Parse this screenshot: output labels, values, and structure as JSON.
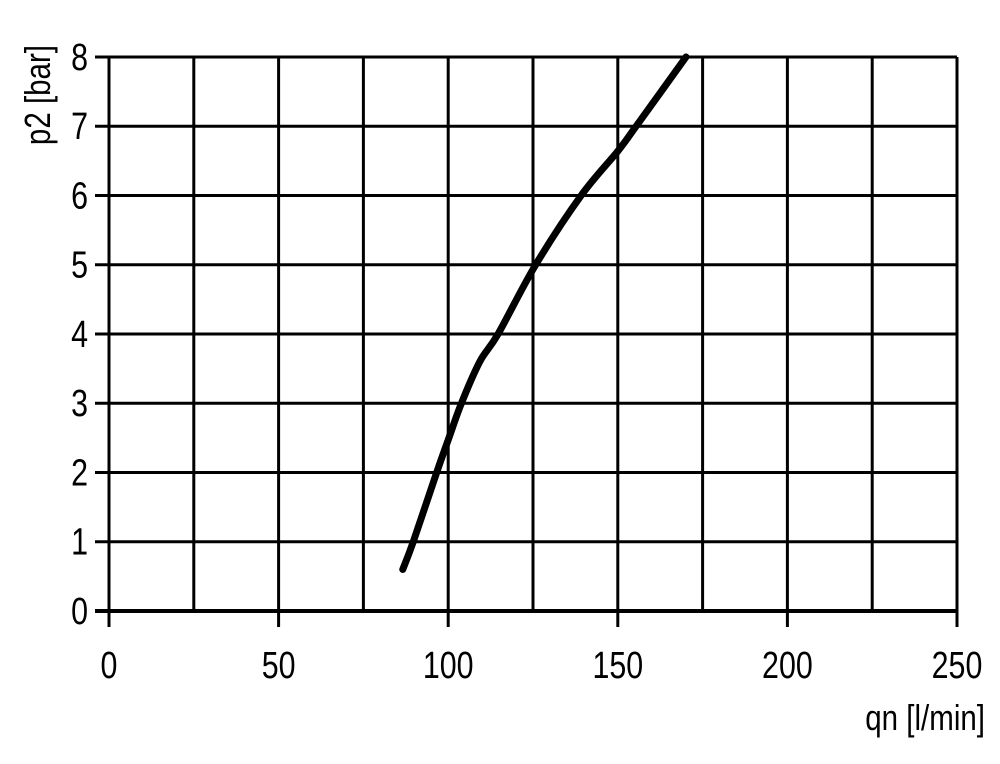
{
  "chart_data": {
    "type": "line",
    "title": "",
    "xlabel": "qn [l/min]",
    "ylabel": "p2 [bar]",
    "xlim": [
      0,
      250
    ],
    "ylim": [
      0,
      8
    ],
    "grid": true,
    "x_major_ticks": [
      0,
      50,
      100,
      150,
      200,
      250
    ],
    "x_tick_labels": [
      "0",
      "50",
      "100",
      "150",
      "200",
      "250"
    ],
    "x_grid_step": 25,
    "y_ticks": [
      0,
      1,
      2,
      3,
      4,
      5,
      6,
      7,
      8
    ],
    "y_tick_labels": [
      "0",
      "1",
      "2",
      "3",
      "4",
      "5",
      "6",
      "7",
      "8"
    ],
    "series": [
      {
        "color": "#000000",
        "x": [
          86.6,
          89.7,
          96.6,
          100,
          103.9,
          109.3,
          114.7,
          125.8,
          139.2,
          150,
          155.4,
          170.1
        ],
        "y": [
          0.6,
          1,
          2,
          2.47,
          3,
          3.6,
          4,
          5,
          6,
          6.64,
          7,
          8
        ]
      }
    ]
  }
}
